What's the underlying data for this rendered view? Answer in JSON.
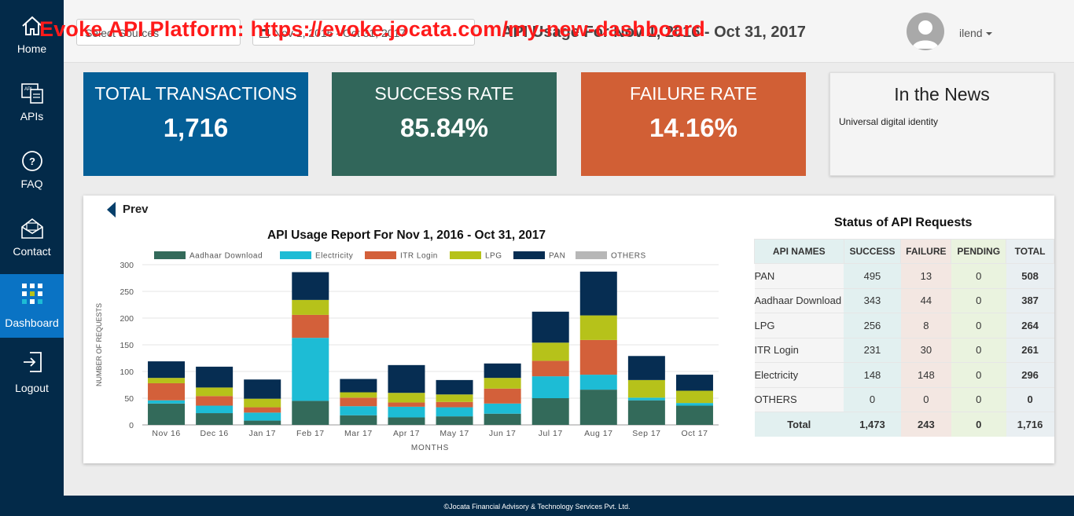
{
  "watermark": "Evoke API Platform: https://evoke.jocata.com/my-new-dashboard",
  "sidebar": {
    "items": [
      {
        "label": "Home",
        "icon": "home-icon"
      },
      {
        "label": "APIs",
        "icon": "api-icon"
      },
      {
        "label": "FAQ",
        "icon": "question-icon"
      },
      {
        "label": "Contact",
        "icon": "mail-icon"
      },
      {
        "label": "Dashboard",
        "icon": "dashboard-icon",
        "active": true
      },
      {
        "label": "Logout",
        "icon": "logout-icon"
      }
    ]
  },
  "topbar": {
    "source_select": "Select Sources",
    "date_range": "Nov 1, 2016 - Oct 31, 2017",
    "heading": "API Usage For Nov 1, 2016 - Oct 31, 2017",
    "user": "ilend"
  },
  "cards": {
    "total": {
      "title": "TOTAL TRANSACTIONS",
      "value": "1,716",
      "color": "#045f97"
    },
    "success": {
      "title": "SUCCESS RATE",
      "value": "85.84%",
      "color": "#31665a"
    },
    "failure": {
      "title": "FAILURE RATE",
      "value": "14.16%",
      "color": "#d15f35"
    },
    "news": {
      "title": "In the News",
      "item": "Universal digital identity"
    }
  },
  "panel": {
    "prev": "Prev",
    "status_title": "Status of API Requests",
    "table": {
      "headers": [
        "API NAMES",
        "SUCCESS",
        "FAILURE",
        "PENDING",
        "TOTAL"
      ],
      "rows": [
        [
          "PAN",
          "495",
          "13",
          "0",
          "508"
        ],
        [
          "Aadhaar Download",
          "343",
          "44",
          "0",
          "387"
        ],
        [
          "LPG",
          "256",
          "8",
          "0",
          "264"
        ],
        [
          "ITR Login",
          "231",
          "30",
          "0",
          "261"
        ],
        [
          "Electricity",
          "148",
          "148",
          "0",
          "296"
        ],
        [
          "OTHERS",
          "0",
          "0",
          "0",
          "0"
        ]
      ],
      "total": [
        "Total",
        "1,473",
        "243",
        "0",
        "1,716"
      ]
    }
  },
  "chart_data": {
    "type": "bar",
    "stacked": true,
    "title": "API Usage Report For Nov 1, 2016 - Oct 31, 2017",
    "xlabel": "MONTHS",
    "ylabel": "NUMBER OF REQUESTS",
    "ylim": [
      0,
      300
    ],
    "yticks": [
      0,
      50,
      100,
      150,
      200,
      250,
      300
    ],
    "grid": true,
    "legend_position": "top",
    "categories": [
      "Nov 16",
      "Dec 16",
      "Jan 17",
      "Feb 17",
      "Mar 17",
      "Apr 17",
      "May 17",
      "Jun 17",
      "Jul 17",
      "Aug 17",
      "Sep 17",
      "Oct 17"
    ],
    "series": [
      {
        "name": "Aadhaar Download",
        "color": "#336a5a",
        "values": [
          40,
          22,
          8,
          45,
          18,
          14,
          16,
          21,
          50,
          66,
          46,
          36
        ]
      },
      {
        "name": "Electricity",
        "color": "#1dbcd5",
        "values": [
          6,
          14,
          15,
          118,
          17,
          20,
          17,
          19,
          41,
          28,
          5,
          5
        ]
      },
      {
        "name": "ITR Login",
        "color": "#d3603a",
        "values": [
          32,
          18,
          10,
          43,
          16,
          8,
          10,
          28,
          29,
          65,
          0,
          0
        ]
      },
      {
        "name": "LPG",
        "color": "#b6c21a",
        "values": [
          10,
          16,
          16,
          28,
          10,
          18,
          14,
          20,
          34,
          46,
          33,
          23
        ]
      },
      {
        "name": "PAN",
        "color": "#062d52",
        "values": [
          31,
          39,
          36,
          52,
          25,
          52,
          27,
          27,
          58,
          82,
          45,
          30
        ]
      },
      {
        "name": "OTHERS",
        "color": "#b7b7b7",
        "values": [
          0,
          0,
          0,
          0,
          0,
          0,
          0,
          0,
          0,
          0,
          0,
          0
        ]
      }
    ]
  },
  "footer": "©Jocata Financial Advisory & Technology Services Pvt. Ltd."
}
